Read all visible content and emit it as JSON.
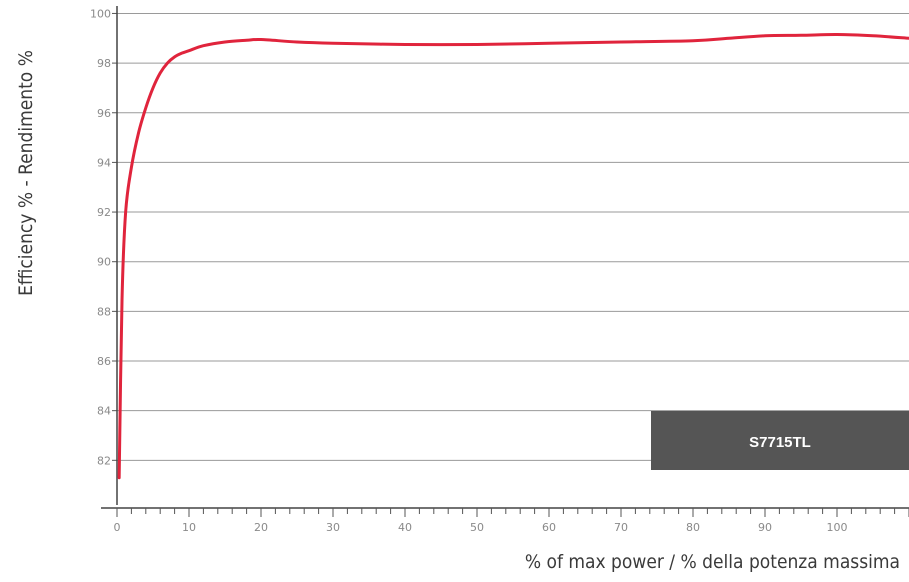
{
  "chart_data": {
    "type": "line",
    "title": "",
    "xlabel": "% of max power / % della potenza massima",
    "ylabel": "Efficiency % - Rendimento %",
    "xlim": [
      0,
      110
    ],
    "ylim": [
      80.2,
      100.3
    ],
    "xticks": [
      0,
      10,
      20,
      30,
      40,
      50,
      60,
      70,
      80,
      90,
      100
    ],
    "yticks": [
      82,
      84,
      86,
      88,
      90,
      92,
      94,
      96,
      98,
      100
    ],
    "grid": "horizontal",
    "series": [
      {
        "name": "S7715TL",
        "color": "#e0243c",
        "x": [
          0.3,
          0.7,
          1.2,
          2,
          3,
          4,
          5,
          6,
          7,
          8,
          9,
          10,
          12,
          15,
          18,
          20,
          25,
          30,
          40,
          50,
          60,
          70,
          80,
          85,
          90,
          95,
          100,
          105,
          110
        ],
        "y": [
          81.3,
          88.5,
          92.0,
          93.8,
          95.2,
          96.2,
          97.0,
          97.6,
          98.0,
          98.25,
          98.4,
          98.5,
          98.7,
          98.85,
          98.92,
          98.95,
          98.85,
          98.8,
          98.75,
          98.75,
          98.8,
          98.85,
          98.9,
          99.0,
          99.1,
          99.12,
          99.15,
          99.1,
          99.0
        ]
      }
    ]
  },
  "badge": {
    "label": "S7715TL",
    "color": "#555555"
  }
}
